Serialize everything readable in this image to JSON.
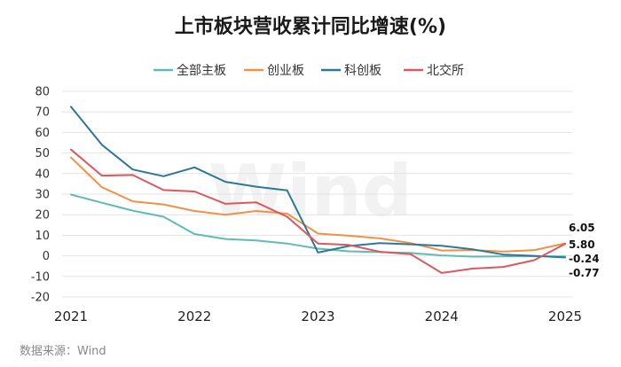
{
  "title": "上市板块营收累计同比增速(%)",
  "source": "数据来源：Wind",
  "watermark": "Wind",
  "chart_data": {
    "type": "line",
    "title": "上市板块营收累计同比增速(%)",
    "ylim": [
      -20,
      80
    ],
    "y_ticks": [
      80,
      70,
      60,
      50,
      40,
      30,
      20,
      10,
      0,
      -10,
      -20
    ],
    "x_ticks": [
      "2021",
      "2022",
      "2023",
      "2024",
      "2025"
    ],
    "grid": true,
    "legend_position": "top",
    "x": [
      "2021Q1",
      "2021Q2",
      "2021Q3",
      "2021Q4",
      "2022Q1",
      "2022Q2",
      "2022Q3",
      "2022Q4",
      "2023Q1",
      "2023Q2",
      "2023Q3",
      "2023Q4",
      "2024Q1",
      "2024Q2",
      "2024Q3",
      "2024Q4",
      "2025Q1"
    ],
    "series": [
      {
        "name": "全部主板",
        "color": "#5fbcb3",
        "values": [
          29.8,
          25.8,
          22.0,
          19.0,
          10.6,
          8.2,
          7.5,
          6.0,
          3.5,
          2.2,
          1.8,
          1.4,
          0.2,
          -0.4,
          -0.3,
          -0.2,
          -0.24
        ]
      },
      {
        "name": "创业板",
        "color": "#f0914a",
        "values": [
          47.8,
          33.4,
          26.5,
          25.0,
          21.8,
          20.0,
          21.8,
          20.5,
          10.8,
          9.8,
          8.5,
          6.2,
          2.6,
          2.8,
          2.1,
          2.8,
          6.05
        ]
      },
      {
        "name": "科创板",
        "color": "#2e7797",
        "values": [
          72.5,
          54.0,
          42.0,
          38.7,
          43.0,
          36.0,
          33.6,
          31.8,
          1.6,
          4.8,
          6.2,
          5.6,
          4.9,
          3.2,
          0.6,
          0.0,
          -0.77
        ]
      },
      {
        "name": "北交所",
        "color": "#d9595e",
        "values": [
          51.7,
          39.0,
          39.3,
          32.0,
          31.3,
          25.3,
          26.0,
          19.0,
          6.0,
          5.3,
          2.0,
          0.8,
          -8.3,
          -6.2,
          -5.4,
          -2.1,
          5.8
        ]
      }
    ],
    "end_labels": [
      {
        "text": "6.05",
        "series": "创业板"
      },
      {
        "text": "5.80",
        "series": "北交所"
      },
      {
        "text": "-0.24",
        "series": "全部主板"
      },
      {
        "text": "-0.77",
        "series": "科创板"
      }
    ]
  }
}
